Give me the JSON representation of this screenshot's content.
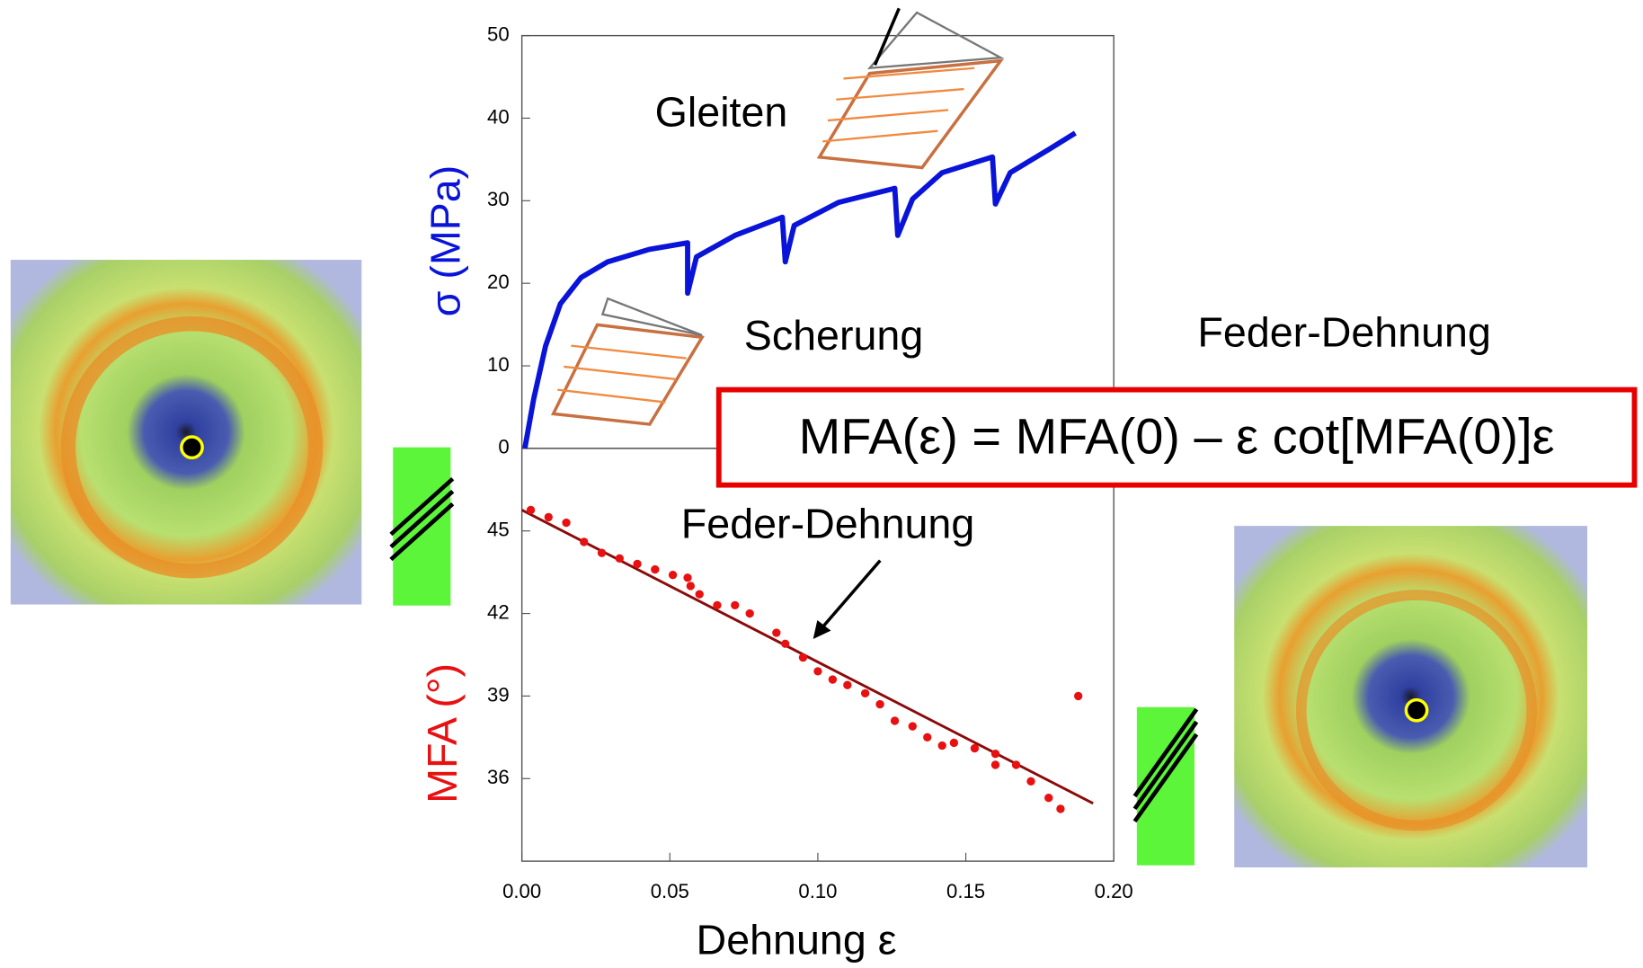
{
  "chart_data": [
    {
      "type": "line",
      "y_label": "σ (MPa)",
      "color": "#0a14d8",
      "xlim": [
        0,
        0.2
      ],
      "ylim": [
        0,
        50
      ],
      "yticks": [
        0,
        10,
        20,
        30,
        40,
        50
      ],
      "x": [
        0.001,
        0.004,
        0.008,
        0.013,
        0.02,
        0.029,
        0.043,
        0.056,
        0.056,
        0.059,
        0.072,
        0.088,
        0.089,
        0.092,
        0.107,
        0.126,
        0.127,
        0.132,
        0.142,
        0.159,
        0.16,
        0.165,
        0.178,
        0.187
      ],
      "values": [
        0,
        6,
        12.4,
        17.5,
        20.7,
        22.6,
        24.1,
        24.9,
        18.8,
        23.2,
        25.8,
        28,
        22.6,
        27,
        29.8,
        31.5,
        25.8,
        30.2,
        33.4,
        35.3,
        29.6,
        33.4,
        36.2,
        38.2
      ],
      "annotations": [
        "Gleiten",
        "Scherung"
      ]
    },
    {
      "type": "scatter",
      "y_label": "MFA (°)",
      "x_label": "Dehnung ε",
      "color": "#e81010",
      "xlim": [
        0,
        0.2
      ],
      "ylim": [
        33,
        48
      ],
      "yticks": [
        36,
        39,
        42,
        45
      ],
      "xticks": [
        {
          "value": 0,
          "label": "0.00"
        },
        {
          "value": 0.05,
          "label": "0.05"
        },
        {
          "value": 0.1,
          "label": "0.10"
        },
        {
          "value": 0.15,
          "label": "0.15"
        },
        {
          "value": 0.2,
          "label": "0.20"
        }
      ],
      "x": [
        0.003,
        0.009,
        0.015,
        0.021,
        0.027,
        0.033,
        0.039,
        0.045,
        0.051,
        0.056,
        0.057,
        0.06,
        0.066,
        0.072,
        0.077,
        0.086,
        0.089,
        0.095,
        0.1,
        0.105,
        0.11,
        0.116,
        0.121,
        0.126,
        0.132,
        0.137,
        0.142,
        0.146,
        0.153,
        0.16,
        0.16,
        0.167,
        0.172,
        0.178,
        0.182,
        0.188
      ],
      "values": [
        45.76,
        45.5,
        45.3,
        44.6,
        44.2,
        44.0,
        43.8,
        43.6,
        43.4,
        43.3,
        43.0,
        42.7,
        42.3,
        42.3,
        42.0,
        41.3,
        40.9,
        40.4,
        39.9,
        39.6,
        39.4,
        39.1,
        38.7,
        38.1,
        37.9,
        37.5,
        37.2,
        37.3,
        37.1,
        36.9,
        36.5,
        36.5,
        35.9,
        35.3,
        34.9,
        39.0
      ],
      "fit": {
        "color": "#8b0a0a",
        "x": [
          0,
          0.193
        ],
        "values": [
          45.76,
          35.1
        ]
      },
      "annotations": [
        "Feder-Dehnung"
      ]
    }
  ],
  "annotations": {
    "right_label": "Feder-Dehnung",
    "formula": "MFA(ε) = MFA(0) – ε cot[MFA(0)]ε"
  }
}
